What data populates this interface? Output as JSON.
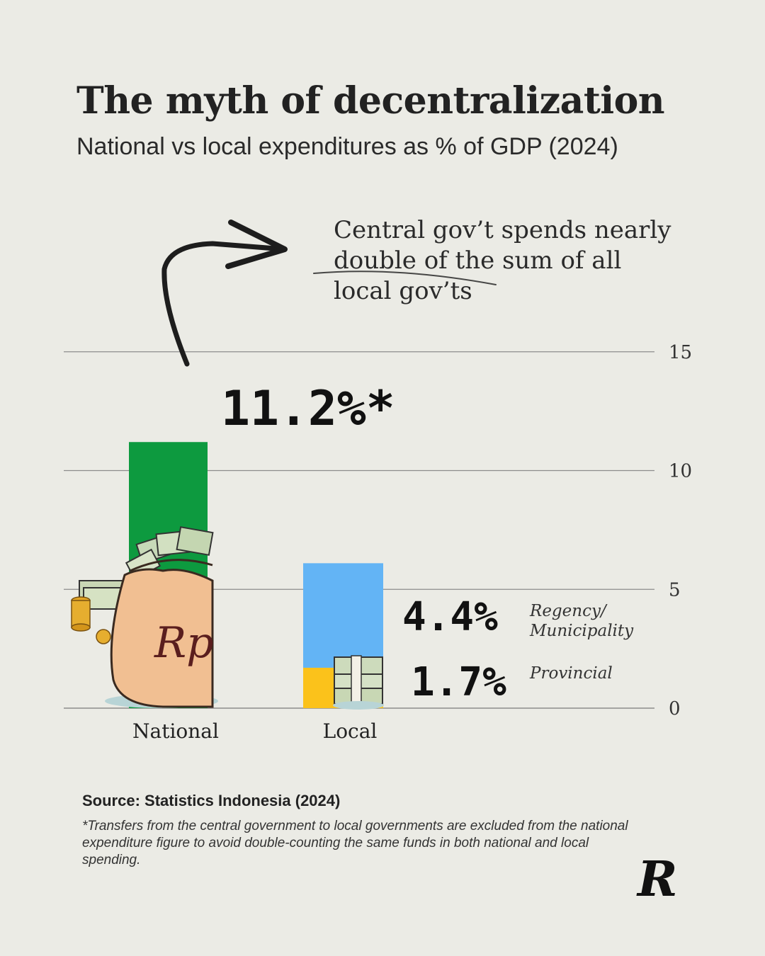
{
  "header": {
    "title": "The myth of decentralization",
    "subtitle": "National vs local expenditures as % of GDP (2024)"
  },
  "callout": {
    "lines": [
      "Central gov’t spends nearly",
      "double of the sum of all",
      "local gov’ts"
    ]
  },
  "chart_data": {
    "type": "bar",
    "categories": [
      "National",
      "Local"
    ],
    "series": [
      {
        "name": "",
        "values": [
          11.2,
          0
        ],
        "color": "#0d9a3f"
      },
      {
        "name": "Provincial",
        "values": [
          0,
          1.7
        ],
        "color": "#fbc21b"
      },
      {
        "name": "Regency/ Municipality",
        "values": [
          0,
          4.4
        ],
        "color": "#63b4f5"
      }
    ],
    "stacked": true,
    "ylim": [
      0,
      15
    ],
    "yticks": [
      0,
      5,
      10,
      15
    ],
    "ytick_labels": [
      "0",
      "5",
      "10",
      "15"
    ],
    "grid": true,
    "axis_position": "right",
    "data_labels": {
      "national": "11.2%*",
      "regency": "4.4%",
      "provincial": "1.7%"
    },
    "segment_labels": {
      "regency_line1": "Regency/",
      "regency_line2": "Municipality",
      "provincial": "Provincial"
    }
  },
  "source": "Source: Statistics Indonesia (2024)",
  "footnote": "*Transfers from the central government to local governments are excluded from the national expenditure figure to avoid double-counting the same funds in both national and local spending.",
  "logo": "R",
  "illustrations": [
    "money-bag-icon",
    "coin-stack-icon",
    "cash-stack-icon"
  ],
  "colors": {
    "background": "#ebebe5",
    "national": "#0d9a3f",
    "regency": "#63b4f5",
    "provincial": "#fbc21b"
  }
}
